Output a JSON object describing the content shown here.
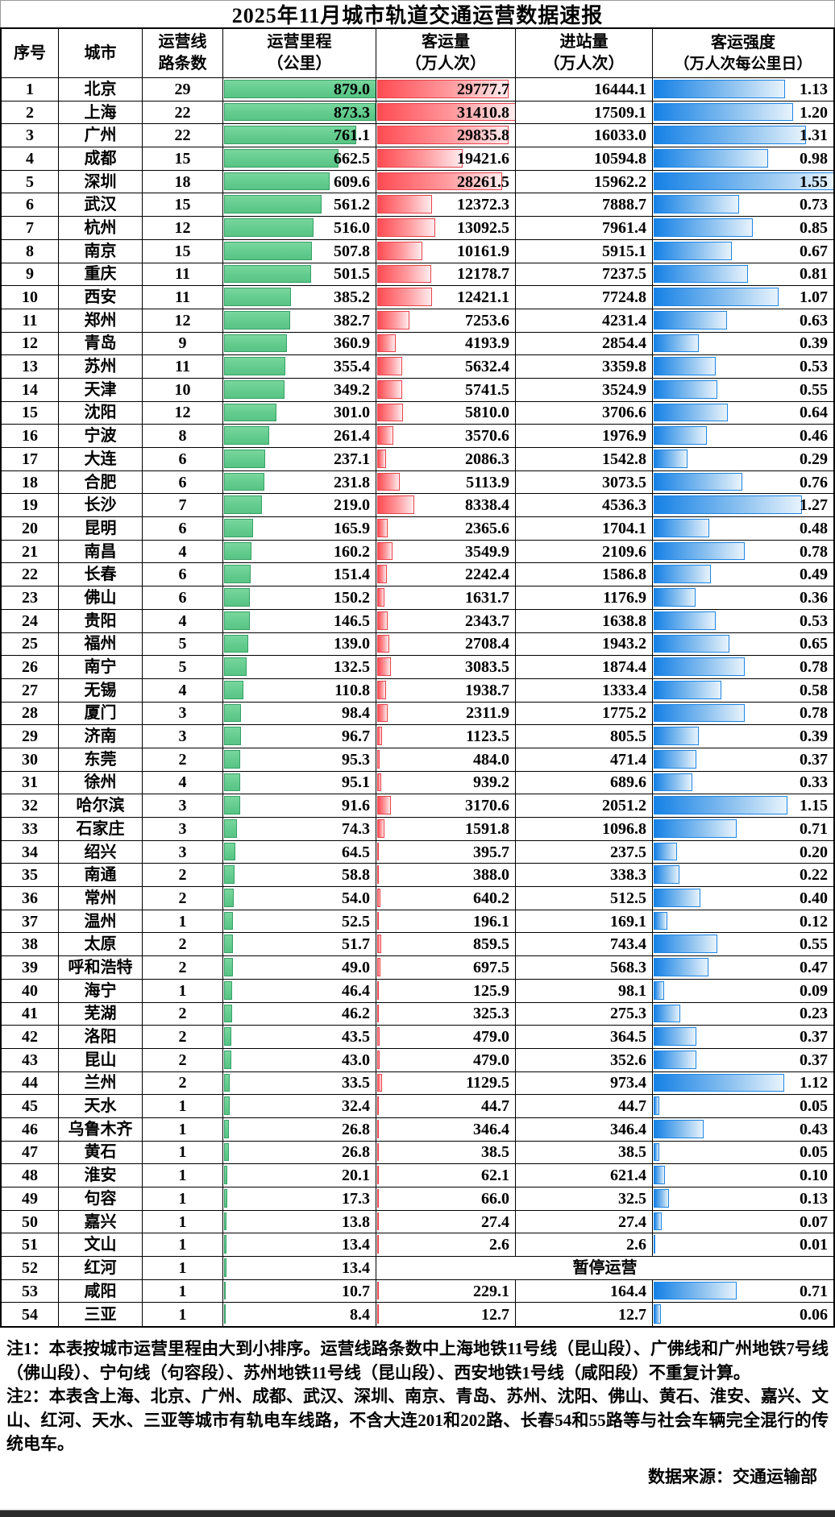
{
  "title": "2025年11月城市轨道交通运营数据速报",
  "header": {
    "index": "序号",
    "city": "城市",
    "lines": [
      "运营线",
      "路条数"
    ],
    "mileage": [
      "运营里程",
      "（公里）"
    ],
    "passengers": [
      "客运量",
      "（万人次）"
    ],
    "entries": [
      "进站量",
      "（万人次）"
    ],
    "intensity": [
      "客运强度",
      "（万人次每公里日）"
    ]
  },
  "notes": {
    "note1": "注1：本表按城市运营里程由大到小排序。运营线路条数中上海地铁11号线（昆山段）、广佛线和广州地铁7号线（佛山段）、宁句线（句容段）、苏州地铁11号线（昆山段）、西安地铁1号线（咸阳段）不重复计算。",
    "note2": "注2：本表含上海、北京、广州、成都、武汉、深圳、南京、青岛、苏州、沈阳、佛山、黄石、淮安、嘉兴、文山、红河、天水、三亚等城市有轨电车线路，不含大连201和202路、长春54和55路等与社会车辆完全混行的传统电车。"
  },
  "source": "数据来源：交通运输部",
  "colors": {
    "mileage_bar": "#63cc8e",
    "mileage_border": "#36a066",
    "passengers_bar_start": "#ff4b52",
    "passengers_bar_end": "#ffecee",
    "passengers_border": "#e8434b",
    "intensity_bar_start": "#1581e6",
    "intensity_bar_end": "#e8f3fc",
    "intensity_border": "#1e86e4",
    "grid": "#000000",
    "background": "#ffffff"
  },
  "chart_data": {
    "type": "table",
    "title": "2025年11月城市轨道交通运营数据速报",
    "columns": [
      "序号",
      "城市",
      "运营线路条数",
      "运营里程（公里）",
      "客运量（万人次）",
      "进站量（万人次）",
      "客运强度（万人次每公里日）"
    ],
    "bar_maxima": {
      "mileage": 879.0,
      "passengers": 31410.8,
      "intensity": 1.55
    },
    "suspended_label": "暂停运营",
    "rows": [
      {
        "no": 1,
        "city": "北京",
        "lines": 29,
        "mileage": 879.0,
        "passengers": 29777.7,
        "entries": 16444.1,
        "intensity": 1.13
      },
      {
        "no": 2,
        "city": "上海",
        "lines": 22,
        "mileage": 873.3,
        "passengers": 31410.8,
        "entries": 17509.1,
        "intensity": 1.2
      },
      {
        "no": 3,
        "city": "广州",
        "lines": 22,
        "mileage": 761.1,
        "passengers": 29835.8,
        "entries": 16033.0,
        "intensity": 1.31
      },
      {
        "no": 4,
        "city": "成都",
        "lines": 15,
        "mileage": 662.5,
        "passengers": 19421.6,
        "entries": 10594.8,
        "intensity": 0.98
      },
      {
        "no": 5,
        "city": "深圳",
        "lines": 18,
        "mileage": 609.6,
        "passengers": 28261.5,
        "entries": 15962.2,
        "intensity": 1.55
      },
      {
        "no": 6,
        "city": "武汉",
        "lines": 15,
        "mileage": 561.2,
        "passengers": 12372.3,
        "entries": 7888.7,
        "intensity": 0.73
      },
      {
        "no": 7,
        "city": "杭州",
        "lines": 12,
        "mileage": 516.0,
        "passengers": 13092.5,
        "entries": 7961.4,
        "intensity": 0.85
      },
      {
        "no": 8,
        "city": "南京",
        "lines": 15,
        "mileage": 507.8,
        "passengers": 10161.9,
        "entries": 5915.1,
        "intensity": 0.67
      },
      {
        "no": 9,
        "city": "重庆",
        "lines": 11,
        "mileage": 501.5,
        "passengers": 12178.7,
        "entries": 7237.5,
        "intensity": 0.81
      },
      {
        "no": 10,
        "city": "西安",
        "lines": 11,
        "mileage": 385.2,
        "passengers": 12421.1,
        "entries": 7724.8,
        "intensity": 1.07
      },
      {
        "no": 11,
        "city": "郑州",
        "lines": 12,
        "mileage": 382.7,
        "passengers": 7253.6,
        "entries": 4231.4,
        "intensity": 0.63
      },
      {
        "no": 12,
        "city": "青岛",
        "lines": 9,
        "mileage": 360.9,
        "passengers": 4193.9,
        "entries": 2854.4,
        "intensity": 0.39
      },
      {
        "no": 13,
        "city": "苏州",
        "lines": 11,
        "mileage": 355.4,
        "passengers": 5632.4,
        "entries": 3359.8,
        "intensity": 0.53
      },
      {
        "no": 14,
        "city": "天津",
        "lines": 10,
        "mileage": 349.2,
        "passengers": 5741.5,
        "entries": 3524.9,
        "intensity": 0.55
      },
      {
        "no": 15,
        "city": "沈阳",
        "lines": 12,
        "mileage": 301.0,
        "passengers": 5810.0,
        "entries": 3706.6,
        "intensity": 0.64
      },
      {
        "no": 16,
        "city": "宁波",
        "lines": 8,
        "mileage": 261.4,
        "passengers": 3570.6,
        "entries": 1976.9,
        "intensity": 0.46
      },
      {
        "no": 17,
        "city": "大连",
        "lines": 6,
        "mileage": 237.1,
        "passengers": 2086.3,
        "entries": 1542.8,
        "intensity": 0.29
      },
      {
        "no": 18,
        "city": "合肥",
        "lines": 6,
        "mileage": 231.8,
        "passengers": 5113.9,
        "entries": 3073.5,
        "intensity": 0.76
      },
      {
        "no": 19,
        "city": "长沙",
        "lines": 7,
        "mileage": 219.0,
        "passengers": 8338.4,
        "entries": 4536.3,
        "intensity": 1.27
      },
      {
        "no": 20,
        "city": "昆明",
        "lines": 6,
        "mileage": 165.9,
        "passengers": 2365.6,
        "entries": 1704.1,
        "intensity": 0.48
      },
      {
        "no": 21,
        "city": "南昌",
        "lines": 4,
        "mileage": 160.2,
        "passengers": 3549.9,
        "entries": 2109.6,
        "intensity": 0.78
      },
      {
        "no": 22,
        "city": "长春",
        "lines": 6,
        "mileage": 151.4,
        "passengers": 2242.4,
        "entries": 1586.8,
        "intensity": 0.49
      },
      {
        "no": 23,
        "city": "佛山",
        "lines": 6,
        "mileage": 150.2,
        "passengers": 1631.7,
        "entries": 1176.9,
        "intensity": 0.36
      },
      {
        "no": 24,
        "city": "贵阳",
        "lines": 4,
        "mileage": 146.5,
        "passengers": 2343.7,
        "entries": 1638.8,
        "intensity": 0.53
      },
      {
        "no": 25,
        "city": "福州",
        "lines": 5,
        "mileage": 139.0,
        "passengers": 2708.4,
        "entries": 1943.2,
        "intensity": 0.65
      },
      {
        "no": 26,
        "city": "南宁",
        "lines": 5,
        "mileage": 132.5,
        "passengers": 3083.5,
        "entries": 1874.4,
        "intensity": 0.78
      },
      {
        "no": 27,
        "city": "无锡",
        "lines": 4,
        "mileage": 110.8,
        "passengers": 1938.7,
        "entries": 1333.4,
        "intensity": 0.58
      },
      {
        "no": 28,
        "city": "厦门",
        "lines": 3,
        "mileage": 98.4,
        "passengers": 2311.9,
        "entries": 1775.2,
        "intensity": 0.78
      },
      {
        "no": 29,
        "city": "济南",
        "lines": 3,
        "mileage": 96.7,
        "passengers": 1123.5,
        "entries": 805.5,
        "intensity": 0.39
      },
      {
        "no": 30,
        "city": "东莞",
        "lines": 2,
        "mileage": 95.3,
        "passengers": 484.0,
        "entries": 471.4,
        "intensity": 0.37
      },
      {
        "no": 31,
        "city": "徐州",
        "lines": 4,
        "mileage": 95.1,
        "passengers": 939.2,
        "entries": 689.6,
        "intensity": 0.33
      },
      {
        "no": 32,
        "city": "哈尔滨",
        "lines": 3,
        "mileage": 91.6,
        "passengers": 3170.6,
        "entries": 2051.2,
        "intensity": 1.15
      },
      {
        "no": 33,
        "city": "石家庄",
        "lines": 3,
        "mileage": 74.3,
        "passengers": 1591.8,
        "entries": 1096.8,
        "intensity": 0.71
      },
      {
        "no": 34,
        "city": "绍兴",
        "lines": 3,
        "mileage": 64.5,
        "passengers": 395.7,
        "entries": 237.5,
        "intensity": 0.2
      },
      {
        "no": 35,
        "city": "南通",
        "lines": 2,
        "mileage": 58.8,
        "passengers": 388.0,
        "entries": 338.3,
        "intensity": 0.22
      },
      {
        "no": 36,
        "city": "常州",
        "lines": 2,
        "mileage": 54.0,
        "passengers": 640.2,
        "entries": 512.5,
        "intensity": 0.4
      },
      {
        "no": 37,
        "city": "温州",
        "lines": 1,
        "mileage": 52.5,
        "passengers": 196.1,
        "entries": 169.1,
        "intensity": 0.12
      },
      {
        "no": 38,
        "city": "太原",
        "lines": 2,
        "mileage": 51.7,
        "passengers": 859.5,
        "entries": 743.4,
        "intensity": 0.55
      },
      {
        "no": 39,
        "city": "呼和浩特",
        "lines": 2,
        "mileage": 49.0,
        "passengers": 697.5,
        "entries": 568.3,
        "intensity": 0.47
      },
      {
        "no": 40,
        "city": "海宁",
        "lines": 1,
        "mileage": 46.4,
        "passengers": 125.9,
        "entries": 98.1,
        "intensity": 0.09
      },
      {
        "no": 41,
        "city": "芜湖",
        "lines": 2,
        "mileage": 46.2,
        "passengers": 325.3,
        "entries": 275.3,
        "intensity": 0.23
      },
      {
        "no": 42,
        "city": "洛阳",
        "lines": 2,
        "mileage": 43.5,
        "passengers": 479.0,
        "entries": 364.5,
        "intensity": 0.37
      },
      {
        "no": 43,
        "city": "昆山",
        "lines": 2,
        "mileage": 43.0,
        "passengers": 479.0,
        "entries": 352.6,
        "intensity": 0.37
      },
      {
        "no": 44,
        "city": "兰州",
        "lines": 2,
        "mileage": 33.5,
        "passengers": 1129.5,
        "entries": 973.4,
        "intensity": 1.12
      },
      {
        "no": 45,
        "city": "天水",
        "lines": 1,
        "mileage": 32.4,
        "passengers": 44.7,
        "entries": 44.7,
        "intensity": 0.05
      },
      {
        "no": 46,
        "city": "乌鲁木齐",
        "lines": 1,
        "mileage": 26.8,
        "passengers": 346.4,
        "entries": 346.4,
        "intensity": 0.43
      },
      {
        "no": 47,
        "city": "黄石",
        "lines": 1,
        "mileage": 26.8,
        "passengers": 38.5,
        "entries": 38.5,
        "intensity": 0.05
      },
      {
        "no": 48,
        "city": "淮安",
        "lines": 1,
        "mileage": 20.1,
        "passengers": 62.1,
        "entries": 621.4,
        "intensity": 0.1
      },
      {
        "no": 49,
        "city": "句容",
        "lines": 1,
        "mileage": 17.3,
        "passengers": 66.0,
        "entries": 32.5,
        "intensity": 0.13
      },
      {
        "no": 50,
        "city": "嘉兴",
        "lines": 1,
        "mileage": 13.8,
        "passengers": 27.4,
        "entries": 27.4,
        "intensity": 0.07
      },
      {
        "no": 51,
        "city": "文山",
        "lines": 1,
        "mileage": 13.4,
        "passengers": 2.6,
        "entries": 2.6,
        "intensity": 0.01
      },
      {
        "no": 52,
        "city": "红河",
        "lines": 1,
        "mileage": 13.4,
        "suspended": true
      },
      {
        "no": 53,
        "city": "咸阳",
        "lines": 1,
        "mileage": 10.7,
        "passengers": 229.1,
        "entries": 164.4,
        "intensity": 0.71
      },
      {
        "no": 54,
        "city": "三亚",
        "lines": 1,
        "mileage": 8.4,
        "passengers": 12.7,
        "entries": 12.7,
        "intensity": 0.06
      }
    ]
  }
}
